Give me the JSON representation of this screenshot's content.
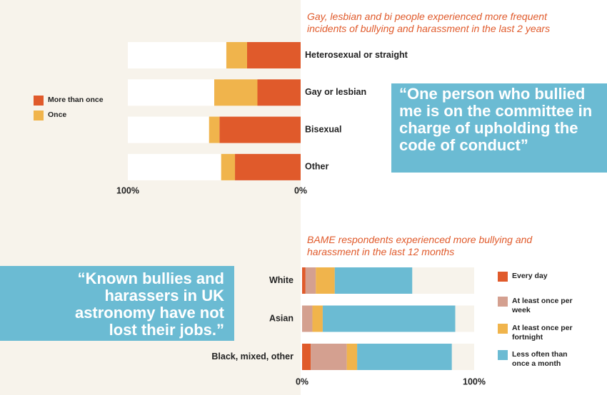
{
  "chart_data": [
    {
      "type": "bar",
      "orientation": "horizontal",
      "stacked": true,
      "x_reversed": true,
      "legend": "left",
      "title": "Gay, lesbian and bi people experienced more frequent incidents of bullying and harassment in the last 2 years",
      "categories": [
        "Heterosexual or straight",
        "Gay or lesbian",
        "Bisexual",
        "Other"
      ],
      "series": [
        {
          "name": "More than once",
          "color": "#e05a2b",
          "values": [
            31,
            25,
            47,
            38
          ]
        },
        {
          "name": "Once",
          "color": "#f0b44c",
          "values": [
            12,
            25,
            6,
            8
          ]
        }
      ],
      "xlim": [
        0,
        100
      ],
      "xticks": [
        {
          "value": 100,
          "label": "100%"
        },
        {
          "value": 0,
          "label": "0%"
        }
      ]
    },
    {
      "type": "bar",
      "orientation": "horizontal",
      "stacked": true,
      "x_reversed": false,
      "legend": "right",
      "title": "BAME respondents experienced more bullying and harassment in the last 12 months",
      "categories": [
        "White",
        "Asian",
        "Black, mixed, other"
      ],
      "series": [
        {
          "name": "Every day",
          "color": "#e05a2b",
          "values": [
            2,
            0,
            5
          ]
        },
        {
          "name": "At least once per week",
          "color": "#d4a090",
          "values": [
            6,
            6,
            21
          ]
        },
        {
          "name": "At least once per fortnight",
          "color": "#f0b44c",
          "values": [
            11,
            6,
            6
          ]
        },
        {
          "name": "Less often than once a month",
          "color": "#6bbbd3",
          "values": [
            45,
            77,
            55
          ]
        }
      ],
      "xlim": [
        0,
        100
      ],
      "xticks": [
        {
          "value": 0,
          "label": "0%"
        },
        {
          "value": 100,
          "label": "100%"
        }
      ]
    }
  ],
  "quotes": [
    "“One person who bullied me is on the committee in charge of upholding the code of conduct”",
    "“Known bullies and harassers in UK astronomy have not lost their jobs.”"
  ]
}
